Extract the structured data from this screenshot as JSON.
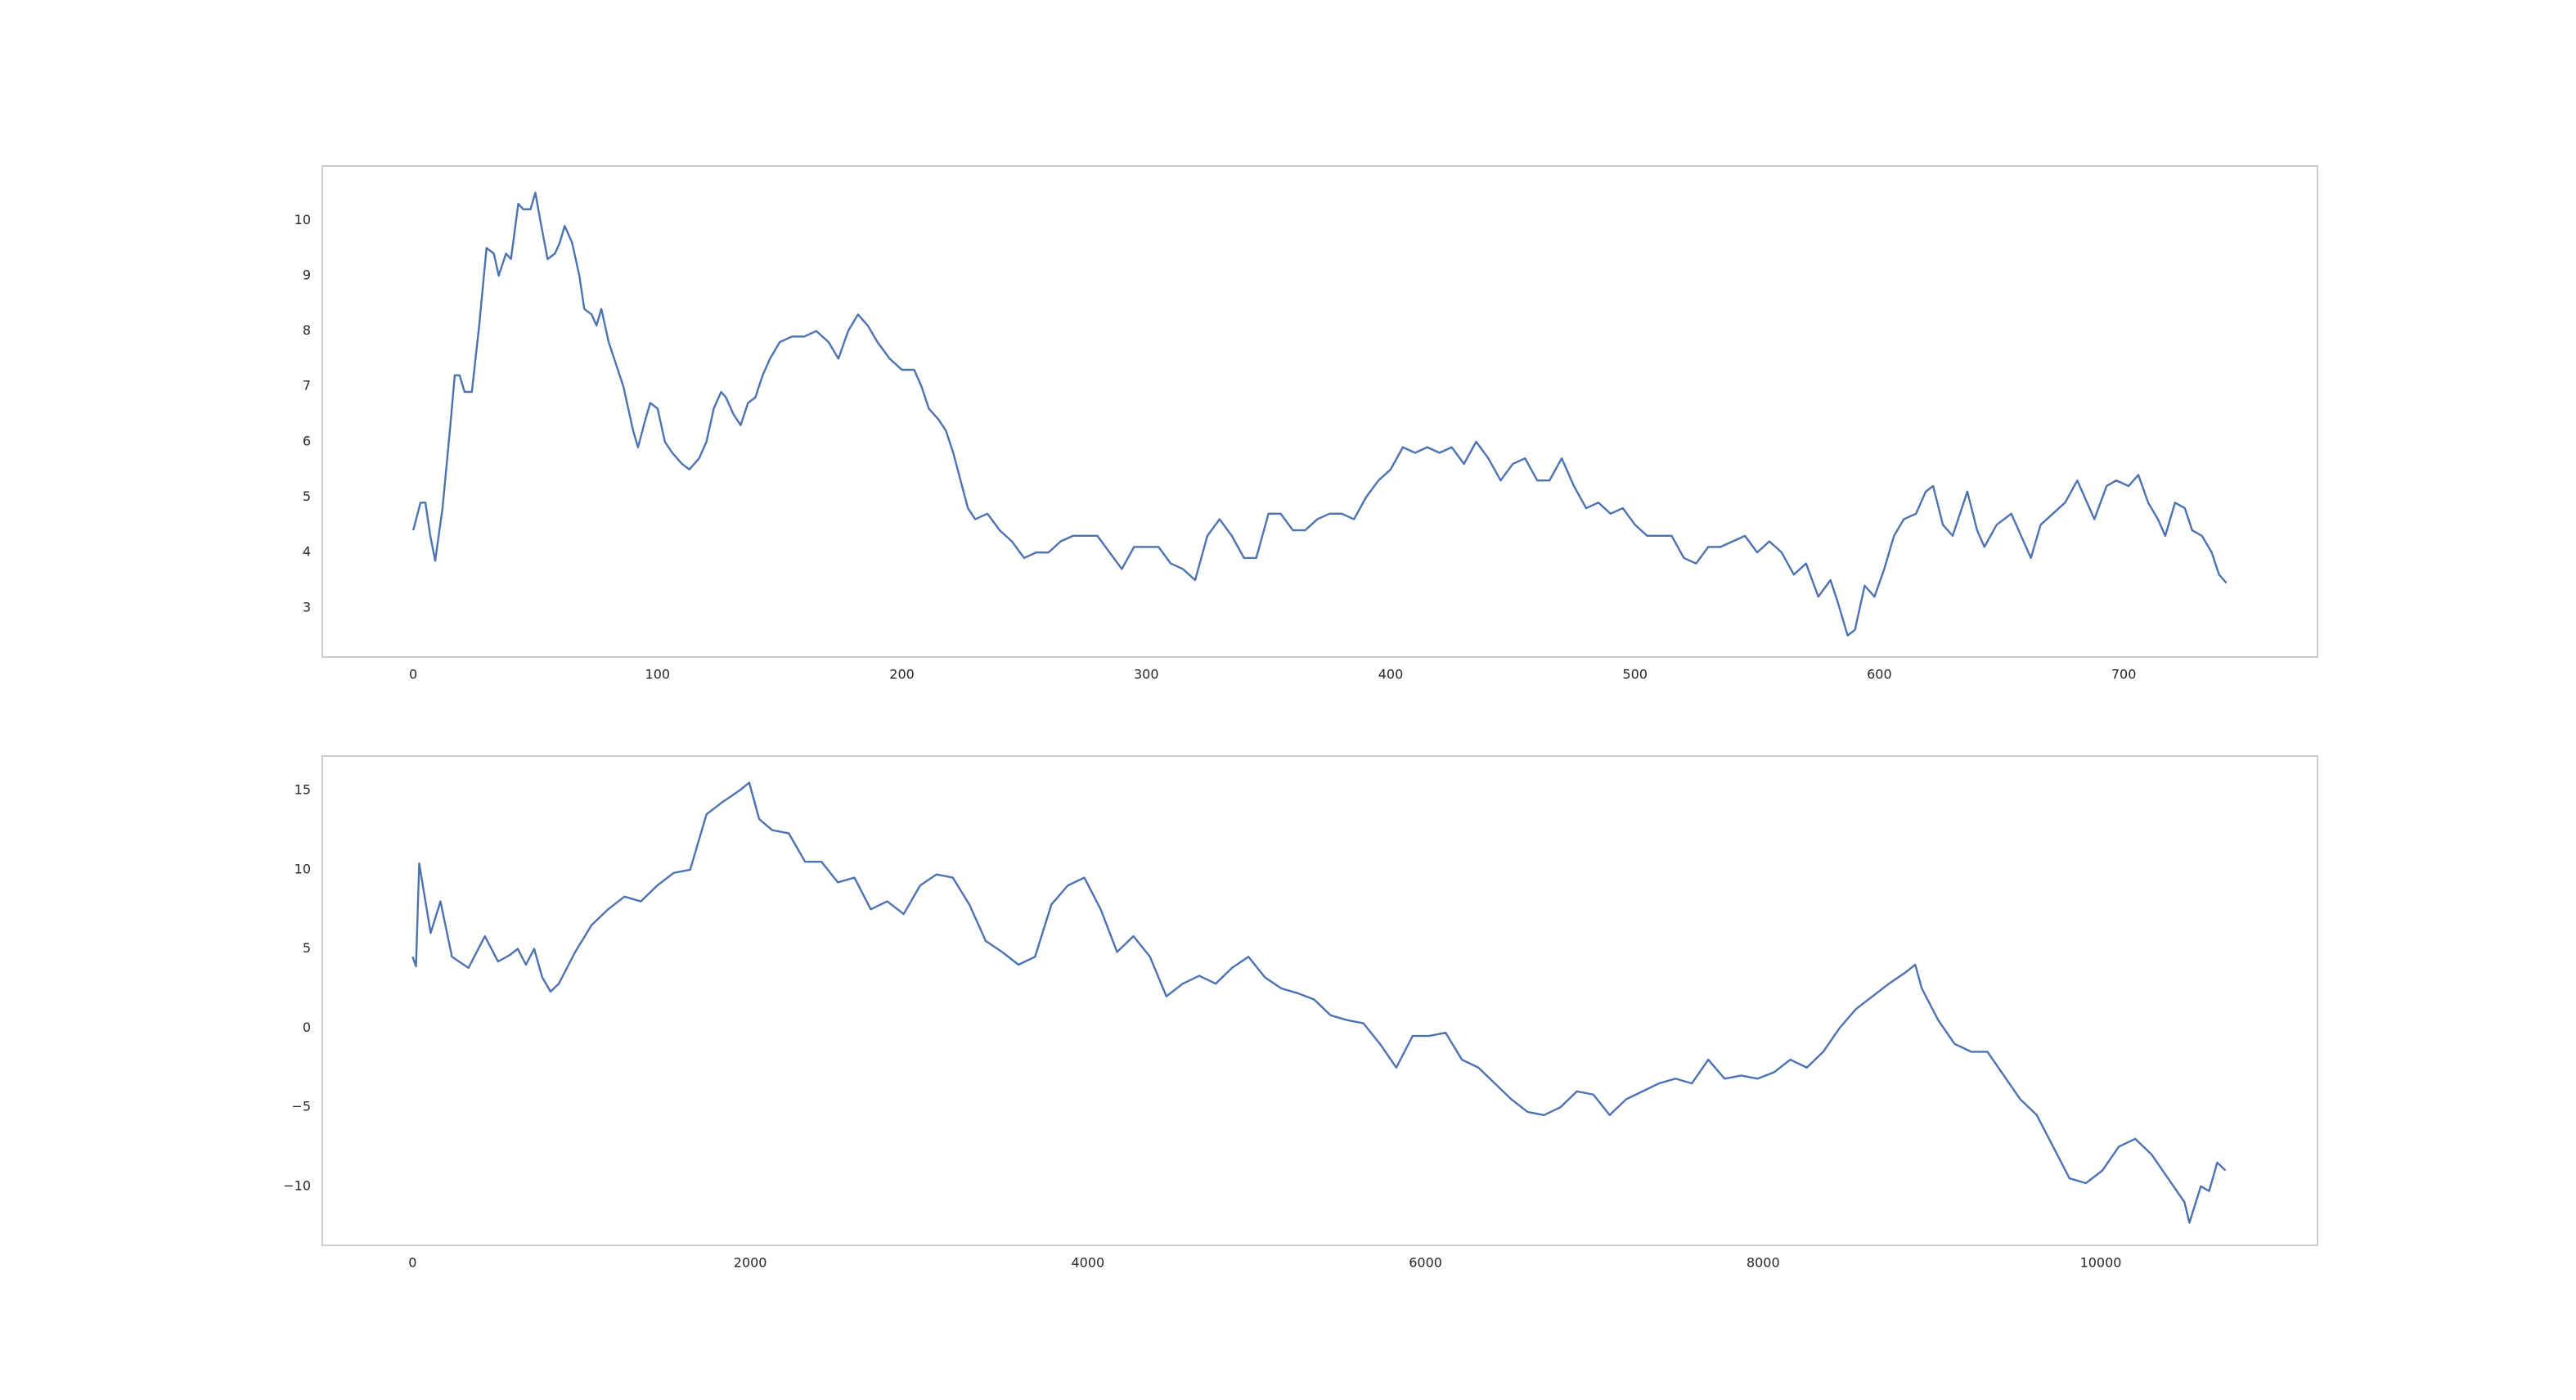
{
  "chart_data": [
    {
      "type": "line",
      "color": "#4c72b0",
      "xlim": [
        -37.2,
        779.3
      ],
      "ylim": [
        2.11,
        10.98
      ],
      "xticks": [
        0,
        100,
        200,
        300,
        400,
        500,
        600,
        700
      ],
      "yticks": [
        3,
        4,
        5,
        6,
        7,
        8,
        9,
        10
      ],
      "x": [
        0,
        3,
        5,
        7,
        9,
        12,
        15,
        17,
        19,
        21,
        24,
        27,
        30,
        33,
        35,
        38,
        40,
        43,
        45,
        48,
        50,
        52,
        55,
        58,
        60,
        62,
        65,
        68,
        70,
        73,
        75,
        77,
        80,
        83,
        86,
        88,
        90,
        92,
        95,
        97,
        100,
        103,
        106,
        110,
        113,
        117,
        120,
        123,
        126,
        128,
        131,
        134,
        137,
        140,
        143,
        146,
        150,
        155,
        160,
        165,
        170,
        174,
        178,
        182,
        186,
        190,
        195,
        200,
        205,
        208,
        211,
        215,
        218,
        221,
        224,
        227,
        230,
        235,
        240,
        245,
        250,
        255,
        260,
        265,
        270,
        275,
        280,
        285,
        290,
        295,
        300,
        305,
        310,
        315,
        320,
        325,
        330,
        335,
        340,
        345,
        350,
        355,
        360,
        365,
        370,
        375,
        380,
        385,
        390,
        395,
        400,
        405,
        410,
        415,
        420,
        425,
        430,
        435,
        440,
        445,
        450,
        455,
        460,
        465,
        470,
        475,
        480,
        485,
        490,
        495,
        500,
        505,
        510,
        515,
        520,
        525,
        530,
        535,
        540,
        545,
        550,
        555,
        560,
        565,
        570,
        575,
        580,
        583,
        587,
        590,
        594,
        598,
        602,
        606,
        610,
        615,
        619,
        622,
        626,
        630,
        636,
        640,
        643,
        648,
        654,
        658,
        662,
        666,
        671,
        676,
        681,
        685,
        688,
        693,
        697,
        702,
        706,
        710,
        714,
        717,
        721,
        725,
        728,
        732,
        736,
        739,
        742
      ],
      "values": [
        4.4,
        4.9,
        4.9,
        4.3,
        3.85,
        4.8,
        6.2,
        7.2,
        7.2,
        6.9,
        6.9,
        8.1,
        9.5,
        9.4,
        9.0,
        9.4,
        9.3,
        10.3,
        10.2,
        10.2,
        10.5,
        10.0,
        9.3,
        9.4,
        9.6,
        9.9,
        9.6,
        9.0,
        8.4,
        8.3,
        8.1,
        8.4,
        7.8,
        7.4,
        7.0,
        6.6,
        6.2,
        5.9,
        6.4,
        6.7,
        6.6,
        6.0,
        5.8,
        5.6,
        5.5,
        5.7,
        6.0,
        6.6,
        6.9,
        6.8,
        6.5,
        6.3,
        6.7,
        6.8,
        7.2,
        7.5,
        7.8,
        7.9,
        7.9,
        8.0,
        7.8,
        7.5,
        8.0,
        8.3,
        8.1,
        7.8,
        7.5,
        7.3,
        7.3,
        7.0,
        6.6,
        6.4,
        6.2,
        5.8,
        5.3,
        4.8,
        4.6,
        4.7,
        4.4,
        4.2,
        3.9,
        4.0,
        4.0,
        4.2,
        4.3,
        4.3,
        4.3,
        4.0,
        3.7,
        4.1,
        4.1,
        4.1,
        3.8,
        3.7,
        3.5,
        4.3,
        4.6,
        4.3,
        3.9,
        3.9,
        4.7,
        4.7,
        4.4,
        4.4,
        4.6,
        4.7,
        4.7,
        4.6,
        5.0,
        5.3,
        5.5,
        5.9,
        5.8,
        5.9,
        5.8,
        5.9,
        5.6,
        6.0,
        5.7,
        5.3,
        5.6,
        5.7,
        5.3,
        5.3,
        5.7,
        5.2,
        4.8,
        4.9,
        4.7,
        4.8,
        4.5,
        4.3,
        4.3,
        4.3,
        3.9,
        3.8,
        4.1,
        4.1,
        4.2,
        4.3,
        4.0,
        4.2,
        4.0,
        3.6,
        3.8,
        3.2,
        3.5,
        3.1,
        2.5,
        2.6,
        3.4,
        3.2,
        3.7,
        4.3,
        4.6,
        4.7,
        5.1,
        5.2,
        4.5,
        4.3,
        5.1,
        4.4,
        4.1,
        4.5,
        4.7,
        4.3,
        3.9,
        4.5,
        4.7,
        4.9,
        5.3,
        4.9,
        4.6,
        5.2,
        5.3,
        5.2,
        5.4,
        4.9,
        4.6,
        4.3,
        4.9,
        4.8,
        4.4,
        4.3,
        4.0,
        3.6,
        3.45
      ]
    },
    {
      "type": "line",
      "color": "#4c72b0",
      "xlim": [
        -535,
        11284
      ],
      "ylim": [
        -13.73,
        17.18
      ],
      "xticks": [
        0,
        2000,
        4000,
        6000,
        8000,
        10000
      ],
      "yticks": [
        {
          "value": -10,
          "label": "−10"
        },
        {
          "value": -5,
          "label": "−5"
        },
        0,
        5,
        10,
        15
      ],
      "x": [
        0,
        20,
        39,
        107,
        165,
        233,
        331,
        428,
        506,
        574,
        623,
        671,
        720,
        768,
        817,
        866,
        963,
        1060,
        1158,
        1255,
        1352,
        1449,
        1547,
        1644,
        1741,
        1839,
        1936,
        1994,
        2053,
        2130,
        2228,
        2325,
        2422,
        2519,
        2617,
        2714,
        2811,
        2909,
        3006,
        3103,
        3200,
        3298,
        3395,
        3492,
        3589,
        3687,
        3784,
        3881,
        3979,
        4076,
        4173,
        4270,
        4368,
        4465,
        4562,
        4660,
        4757,
        4854,
        4951,
        5049,
        5146,
        5243,
        5340,
        5438,
        5535,
        5632,
        5730,
        5827,
        5924,
        6021,
        6119,
        6216,
        6313,
        6411,
        6508,
        6605,
        6702,
        6800,
        6897,
        6994,
        7091,
        7189,
        7286,
        7383,
        7481,
        7578,
        7675,
        7772,
        7870,
        7967,
        8064,
        8161,
        8259,
        8356,
        8453,
        8550,
        8648,
        8745,
        8842,
        8901,
        8940,
        9037,
        9134,
        9232,
        9329,
        9426,
        9523,
        9621,
        9718,
        9815,
        9912,
        10010,
        10107,
        10204,
        10302,
        10399,
        10496,
        10525,
        10593,
        10642,
        10690,
        10739
      ],
      "values": [
        4.5,
        3.9,
        10.4,
        6.0,
        8.0,
        4.5,
        3.8,
        5.8,
        4.2,
        4.6,
        5.0,
        4.0,
        5.0,
        3.2,
        2.3,
        2.8,
        4.8,
        6.5,
        7.5,
        8.3,
        8.0,
        9.0,
        9.8,
        10.0,
        13.5,
        14.3,
        15.0,
        15.5,
        13.2,
        12.5,
        12.3,
        10.5,
        10.5,
        9.2,
        9.5,
        7.5,
        8.0,
        7.2,
        9.0,
        9.7,
        9.5,
        7.8,
        5.5,
        4.8,
        4.0,
        4.5,
        7.8,
        9.0,
        9.5,
        7.5,
        4.8,
        5.8,
        4.5,
        2.0,
        2.8,
        3.3,
        2.8,
        3.8,
        4.5,
        3.2,
        2.5,
        2.2,
        1.8,
        0.8,
        0.5,
        0.3,
        -1.0,
        -2.5,
        -0.5,
        -0.5,
        -0.3,
        -2.0,
        -2.5,
        -3.5,
        -4.5,
        -5.3,
        -5.5,
        -5.0,
        -4.0,
        -4.2,
        -5.5,
        -4.5,
        -4.0,
        -3.5,
        -3.2,
        -3.5,
        -2.0,
        -3.2,
        -3.0,
        -3.2,
        -2.8,
        -2.0,
        -2.5,
        -1.5,
        0.0,
        1.2,
        2.0,
        2.8,
        3.5,
        4.0,
        2.5,
        0.5,
        -1.0,
        -1.5,
        -1.5,
        -3.0,
        -4.5,
        -5.5,
        -7.5,
        -9.5,
        -9.8,
        -9.0,
        -7.5,
        -7.0,
        -8.0,
        -9.5,
        -11.0,
        -12.3,
        -10.0,
        -10.3,
        -8.5,
        -9.0
      ]
    }
  ]
}
